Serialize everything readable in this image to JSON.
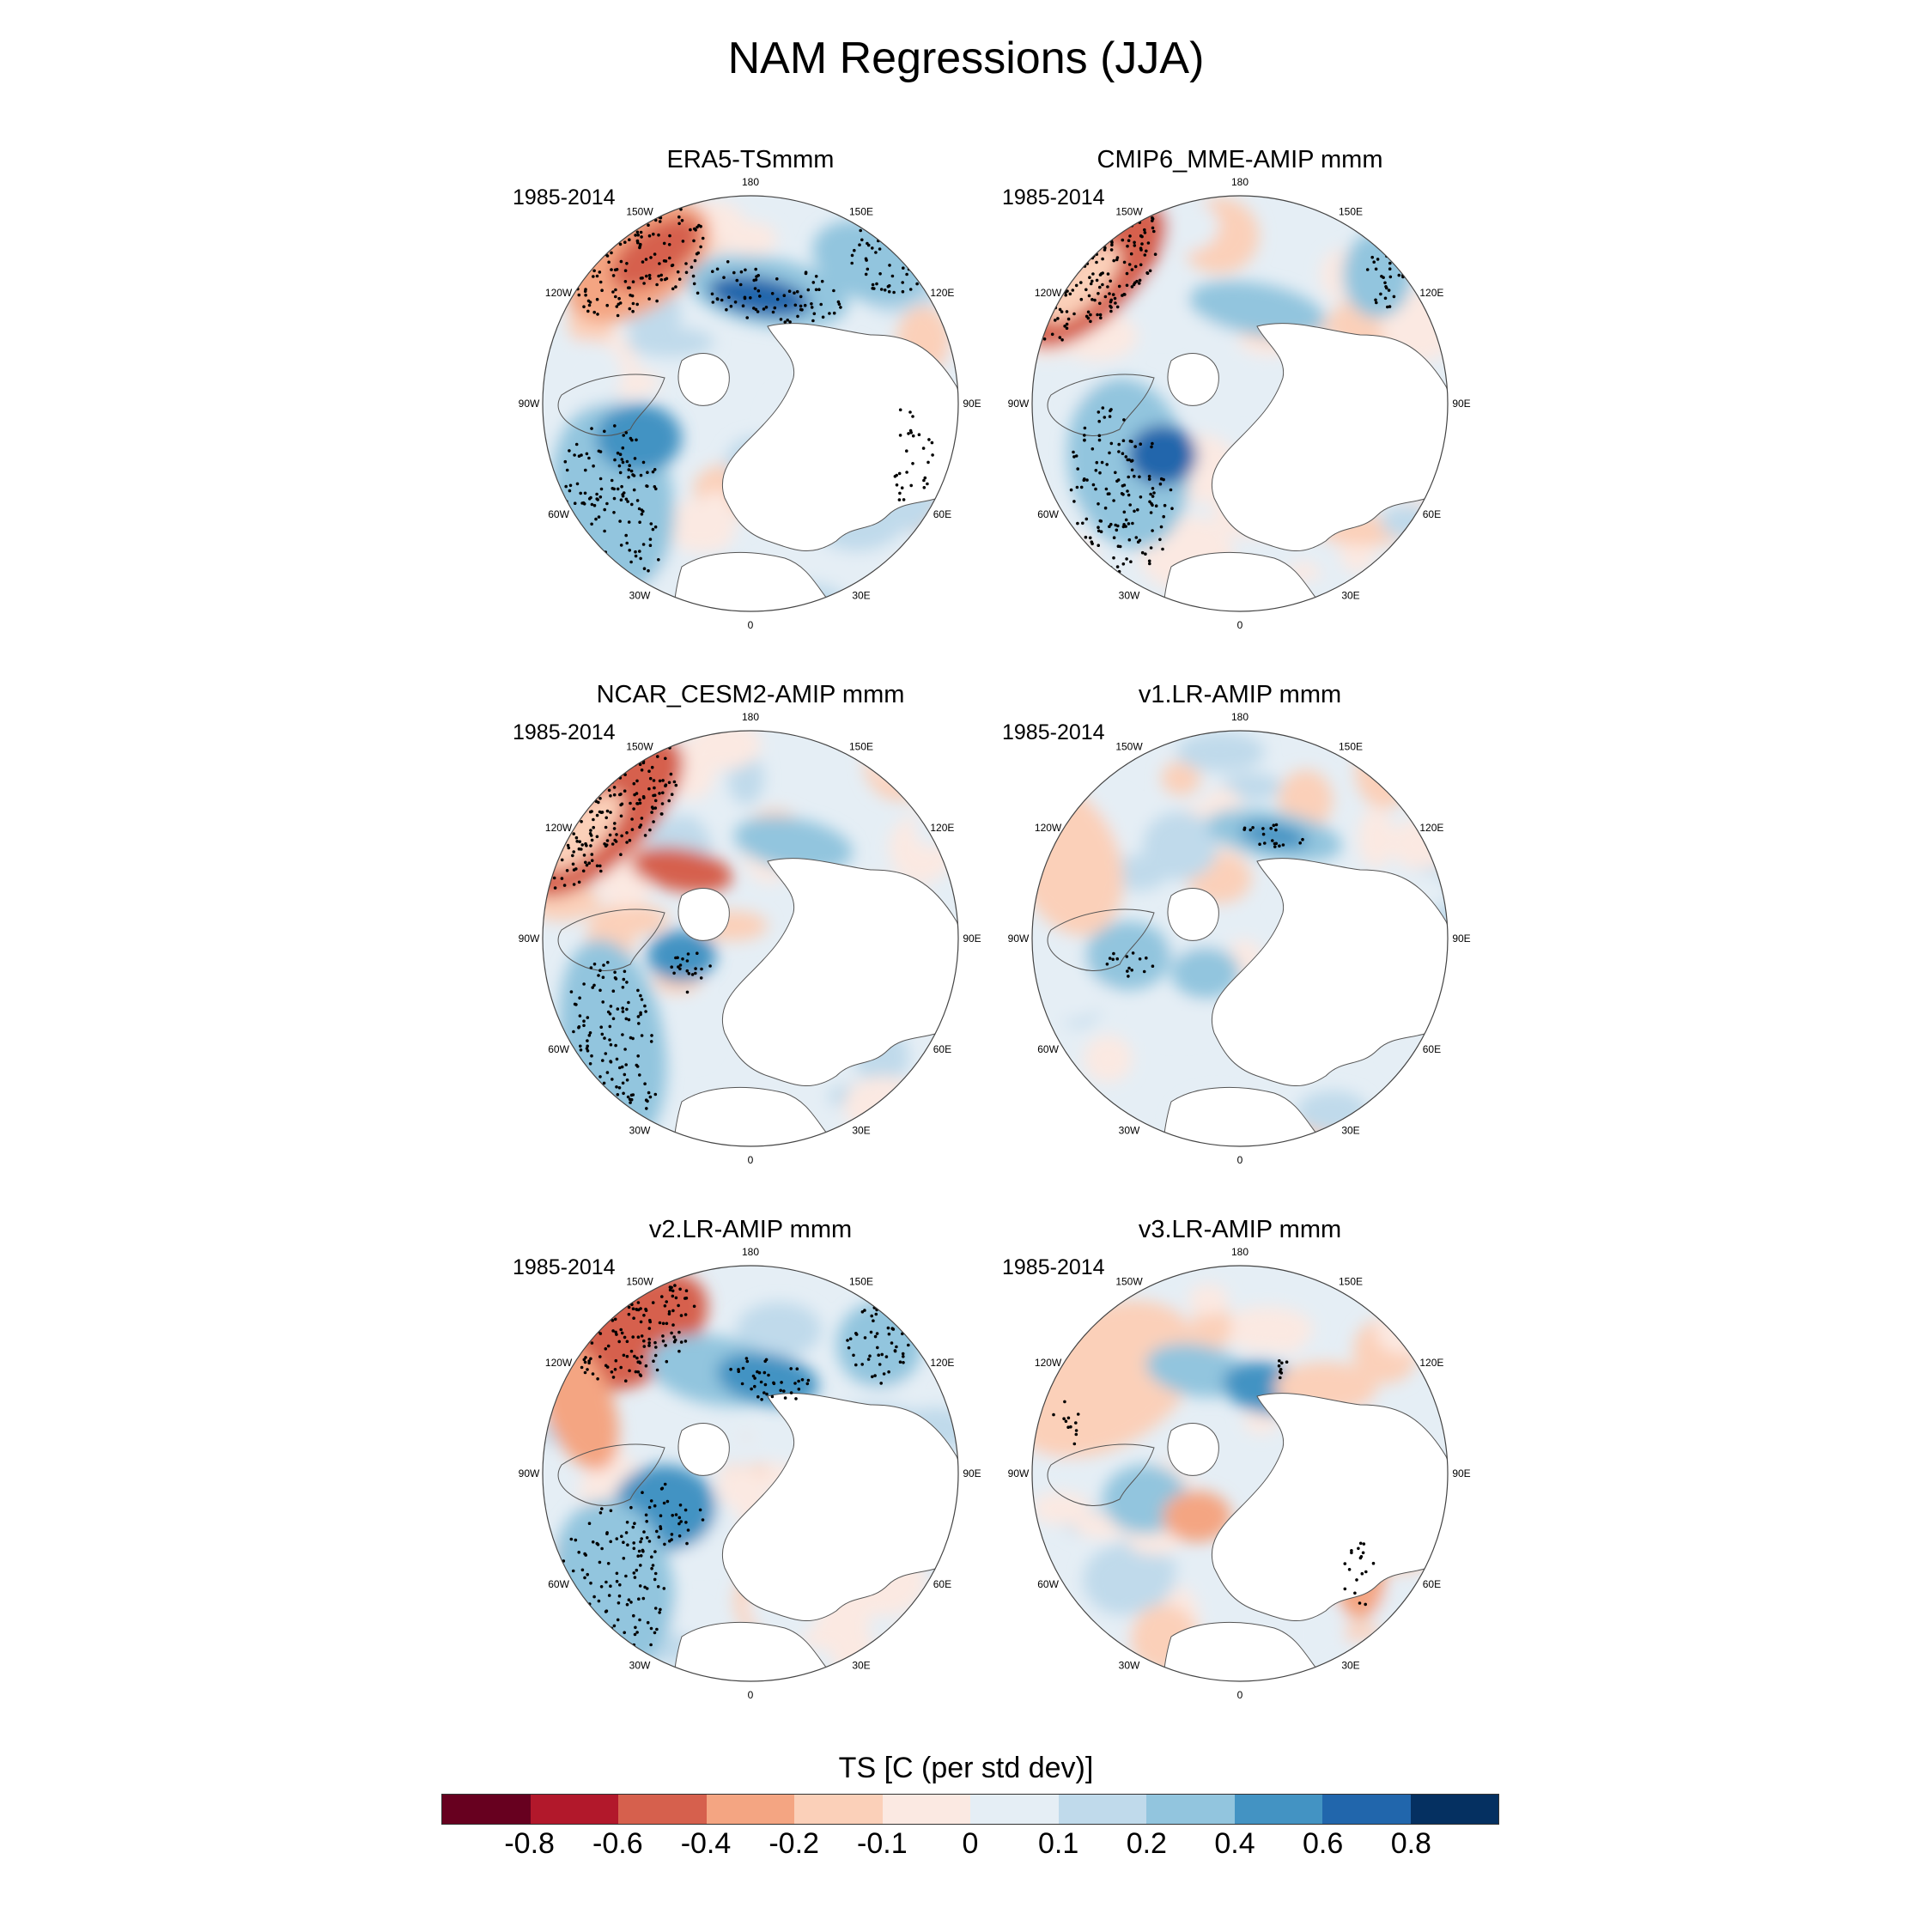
{
  "title": "NAM Regressions (JJA)",
  "panels": [
    {
      "title": "ERA5-TSmmm",
      "period": "1985-2014"
    },
    {
      "title": "CMIP6_MME-AMIP  mmm",
      "period": "1985-2014"
    },
    {
      "title": "NCAR_CESM2-AMIP  mmm",
      "period": "1985-2014"
    },
    {
      "title": "v1.LR-AMIP  mmm",
      "period": "1985-2014"
    },
    {
      "title": "v2.LR-AMIP  mmm",
      "period": "1985-2014"
    },
    {
      "title": "v3.LR-AMIP  mmm",
      "period": "1985-2014"
    }
  ],
  "lon_labels": [
    "180",
    "150E",
    "120E",
    "90E",
    "60E",
    "30E",
    "0",
    "30W",
    "60W",
    "90W",
    "120W",
    "150W"
  ],
  "colorbar": {
    "title": "TS [C (per std dev)]",
    "tick_labels": [
      "-0.8",
      "-0.6",
      "-0.4",
      "-0.2",
      "-0.1",
      "0",
      "0.1",
      "0.2",
      "0.4",
      "0.6",
      "0.8"
    ],
    "colors": [
      "#67001f",
      "#b2182b",
      "#d6604d",
      "#f4a582",
      "#fbd0b9",
      "#fbe9e2",
      "#e5eef5",
      "#c0daeb",
      "#92c5de",
      "#4393c3",
      "#2166ac",
      "#053061"
    ]
  },
  "colors": {
    "land": "#ffffff",
    "coast": "#555555",
    "stipple": "#000000"
  }
}
